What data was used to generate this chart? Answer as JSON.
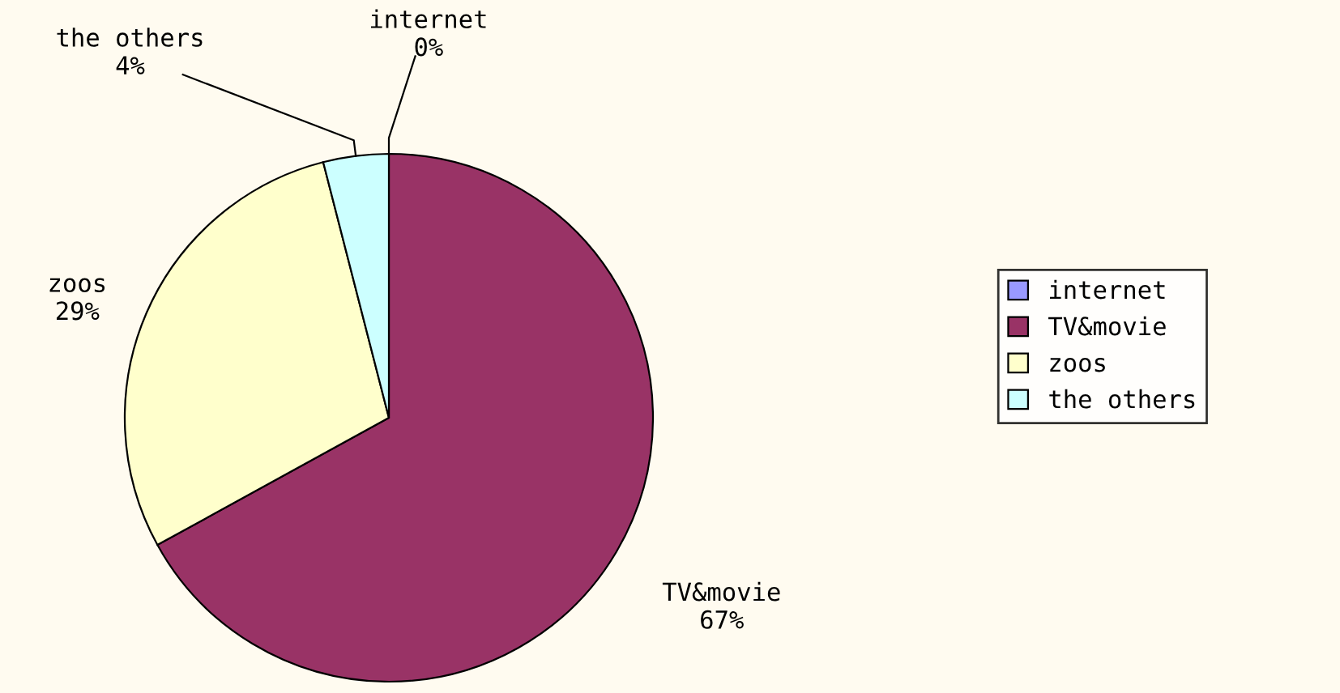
{
  "chart_data": {
    "type": "pie",
    "categories": [
      "internet",
      "TV&movie",
      "zoos",
      "the others"
    ],
    "values": [
      0,
      67,
      29,
      4
    ],
    "value_labels": [
      "0%",
      "67%",
      "29%",
      "4%"
    ],
    "colors": [
      "#9999ff",
      "#993366",
      "#ffffcc",
      "#ccffff"
    ],
    "legend": "right"
  }
}
